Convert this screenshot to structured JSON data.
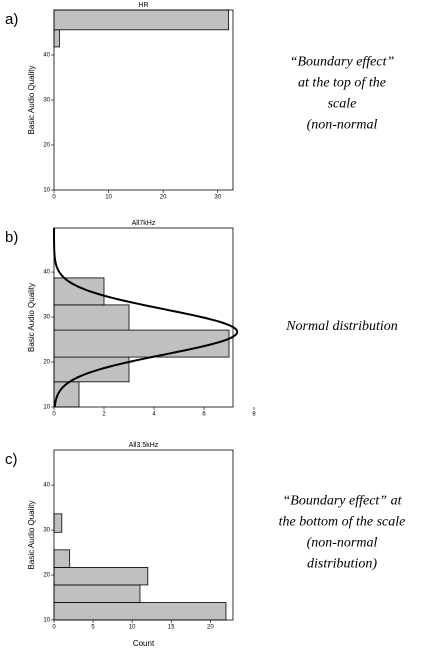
{
  "chart_data": [
    {
      "type": "histogram",
      "orientation": "horizontal",
      "panel_label": "a)",
      "title": "HR",
      "ylabel": "Basic Audio Quality",
      "bins": [
        41.8,
        45.6,
        50
      ],
      "values": [
        1,
        32
      ],
      "color": "#c0c0c0",
      "ylim": [
        10,
        50
      ],
      "yticks": [
        10,
        20,
        30,
        40
      ],
      "xlim": [
        0,
        32.8
      ],
      "xticks": [
        0,
        10,
        20,
        30
      ],
      "annotation": [
        "“Boundary effect”",
        "at the top of the",
        "scale",
        "(non-normal"
      ]
    },
    {
      "type": "histogram",
      "orientation": "horizontal",
      "panel_label": "b)",
      "title": "All7kHz",
      "ylabel": "Basic Audio Quality",
      "bins": [
        10,
        15.6,
        21.1,
        27.1,
        32.7,
        38.7
      ],
      "values": [
        1,
        3,
        7,
        3,
        2
      ],
      "color": "#c0c0c0",
      "ylim": [
        10,
        49.8
      ],
      "yticks": [
        10,
        20,
        30,
        40
      ],
      "xlim": [
        0,
        7.16
      ],
      "xticks": [
        0,
        2,
        4,
        6,
        8
      ],
      "normal_curve": {
        "mean": 26.7,
        "sd": 5
      },
      "annotation": [
        "Normal distribution"
      ]
    },
    {
      "type": "histogram",
      "orientation": "horizontal",
      "panel_label": "c)",
      "title": "All3.5kHz",
      "ylabel": "Basic Audio Quality",
      "xlabel": "Count",
      "bins": [
        10,
        13.9,
        17.8,
        21.7,
        25.6,
        29.5,
        33.6
      ],
      "values": [
        22,
        11,
        12,
        2,
        0,
        1
      ],
      "color": "#c0c0c0",
      "ylim": [
        10,
        47.8
      ],
      "yticks": [
        10,
        20,
        30,
        40
      ],
      "xlim": [
        0,
        22.9
      ],
      "xticks": [
        0,
        5,
        10,
        15,
        20
      ],
      "annotation": [
        "“Boundary effect” at",
        "the bottom of the scale",
        "(non-normal",
        "distribution)"
      ]
    }
  ]
}
